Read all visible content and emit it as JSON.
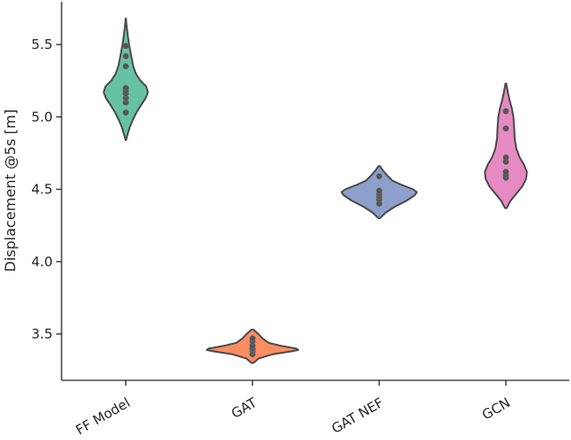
{
  "chart_data": {
    "type": "violin",
    "title": "",
    "xlabel": "",
    "ylabel": "Displacement @5s [m]",
    "ylim": [
      3.3,
      5.8
    ],
    "yticks": [
      "3.5",
      "4.0",
      "4.5",
      "5.0",
      "5.5"
    ],
    "grid": false,
    "categories": [
      "FF Model",
      "GAT",
      "GAT NEF",
      "GCN"
    ],
    "series": [
      {
        "category": "FF Model",
        "color": "#66c2a5",
        "values": [
          5.03,
          5.1,
          5.13,
          5.16,
          5.18,
          5.2,
          5.35,
          5.42,
          5.49
        ],
        "range": [
          4.84,
          5.68
        ],
        "width": 0.4,
        "profile": [
          [
            4.84,
            0.01
          ],
          [
            4.88,
            0.08
          ],
          [
            4.93,
            0.18
          ],
          [
            4.98,
            0.32
          ],
          [
            5.03,
            0.48
          ],
          [
            5.08,
            0.68
          ],
          [
            5.13,
            0.9
          ],
          [
            5.17,
            1.0
          ],
          [
            5.21,
            0.92
          ],
          [
            5.25,
            0.66
          ],
          [
            5.3,
            0.45
          ],
          [
            5.35,
            0.34
          ],
          [
            5.4,
            0.27
          ],
          [
            5.45,
            0.21
          ],
          [
            5.5,
            0.15
          ],
          [
            5.55,
            0.1
          ],
          [
            5.6,
            0.06
          ],
          [
            5.64,
            0.03
          ],
          [
            5.68,
            0.01
          ]
        ]
      },
      {
        "category": "GAT",
        "color": "#fc8d62",
        "values": [
          3.36,
          3.38,
          3.39,
          3.4,
          3.42,
          3.45,
          3.47
        ],
        "range": [
          3.3,
          3.53
        ],
        "width": 0.9,
        "profile": [
          [
            3.3,
            0.02
          ],
          [
            3.33,
            0.12
          ],
          [
            3.36,
            0.4
          ],
          [
            3.38,
            0.78
          ],
          [
            3.39,
            0.92
          ],
          [
            3.4,
            0.88
          ],
          [
            3.42,
            0.55
          ],
          [
            3.44,
            0.32
          ],
          [
            3.47,
            0.2
          ],
          [
            3.5,
            0.12
          ],
          [
            3.53,
            0.02
          ]
        ]
      },
      {
        "category": "GAT NEF",
        "color": "#8da0cb",
        "values": [
          4.4,
          4.43,
          4.45,
          4.47,
          4.49,
          4.59
        ],
        "range": [
          4.3,
          4.66
        ],
        "width": 0.68,
        "profile": [
          [
            4.3,
            0.02
          ],
          [
            4.34,
            0.18
          ],
          [
            4.38,
            0.42
          ],
          [
            4.42,
            0.72
          ],
          [
            4.46,
            0.95
          ],
          [
            4.48,
            1.0
          ],
          [
            4.5,
            0.9
          ],
          [
            4.53,
            0.6
          ],
          [
            4.56,
            0.35
          ],
          [
            4.6,
            0.2
          ],
          [
            4.63,
            0.1
          ],
          [
            4.66,
            0.02
          ]
        ]
      },
      {
        "category": "GCN",
        "color": "#e78ac3",
        "values": [
          4.58,
          4.6,
          4.62,
          4.69,
          4.72,
          4.92,
          5.04
        ],
        "range": [
          4.37,
          5.23
        ],
        "width": 0.38,
        "profile": [
          [
            4.37,
            0.04
          ],
          [
            4.42,
            0.22
          ],
          [
            4.47,
            0.5
          ],
          [
            4.52,
            0.78
          ],
          [
            4.57,
            0.96
          ],
          [
            4.62,
            1.0
          ],
          [
            4.67,
            0.86
          ],
          [
            4.72,
            0.66
          ],
          [
            4.78,
            0.5
          ],
          [
            4.85,
            0.42
          ],
          [
            4.92,
            0.4
          ],
          [
            5.0,
            0.36
          ],
          [
            5.06,
            0.28
          ],
          [
            5.12,
            0.17
          ],
          [
            5.18,
            0.08
          ],
          [
            5.23,
            0.02
          ]
        ]
      }
    ]
  }
}
